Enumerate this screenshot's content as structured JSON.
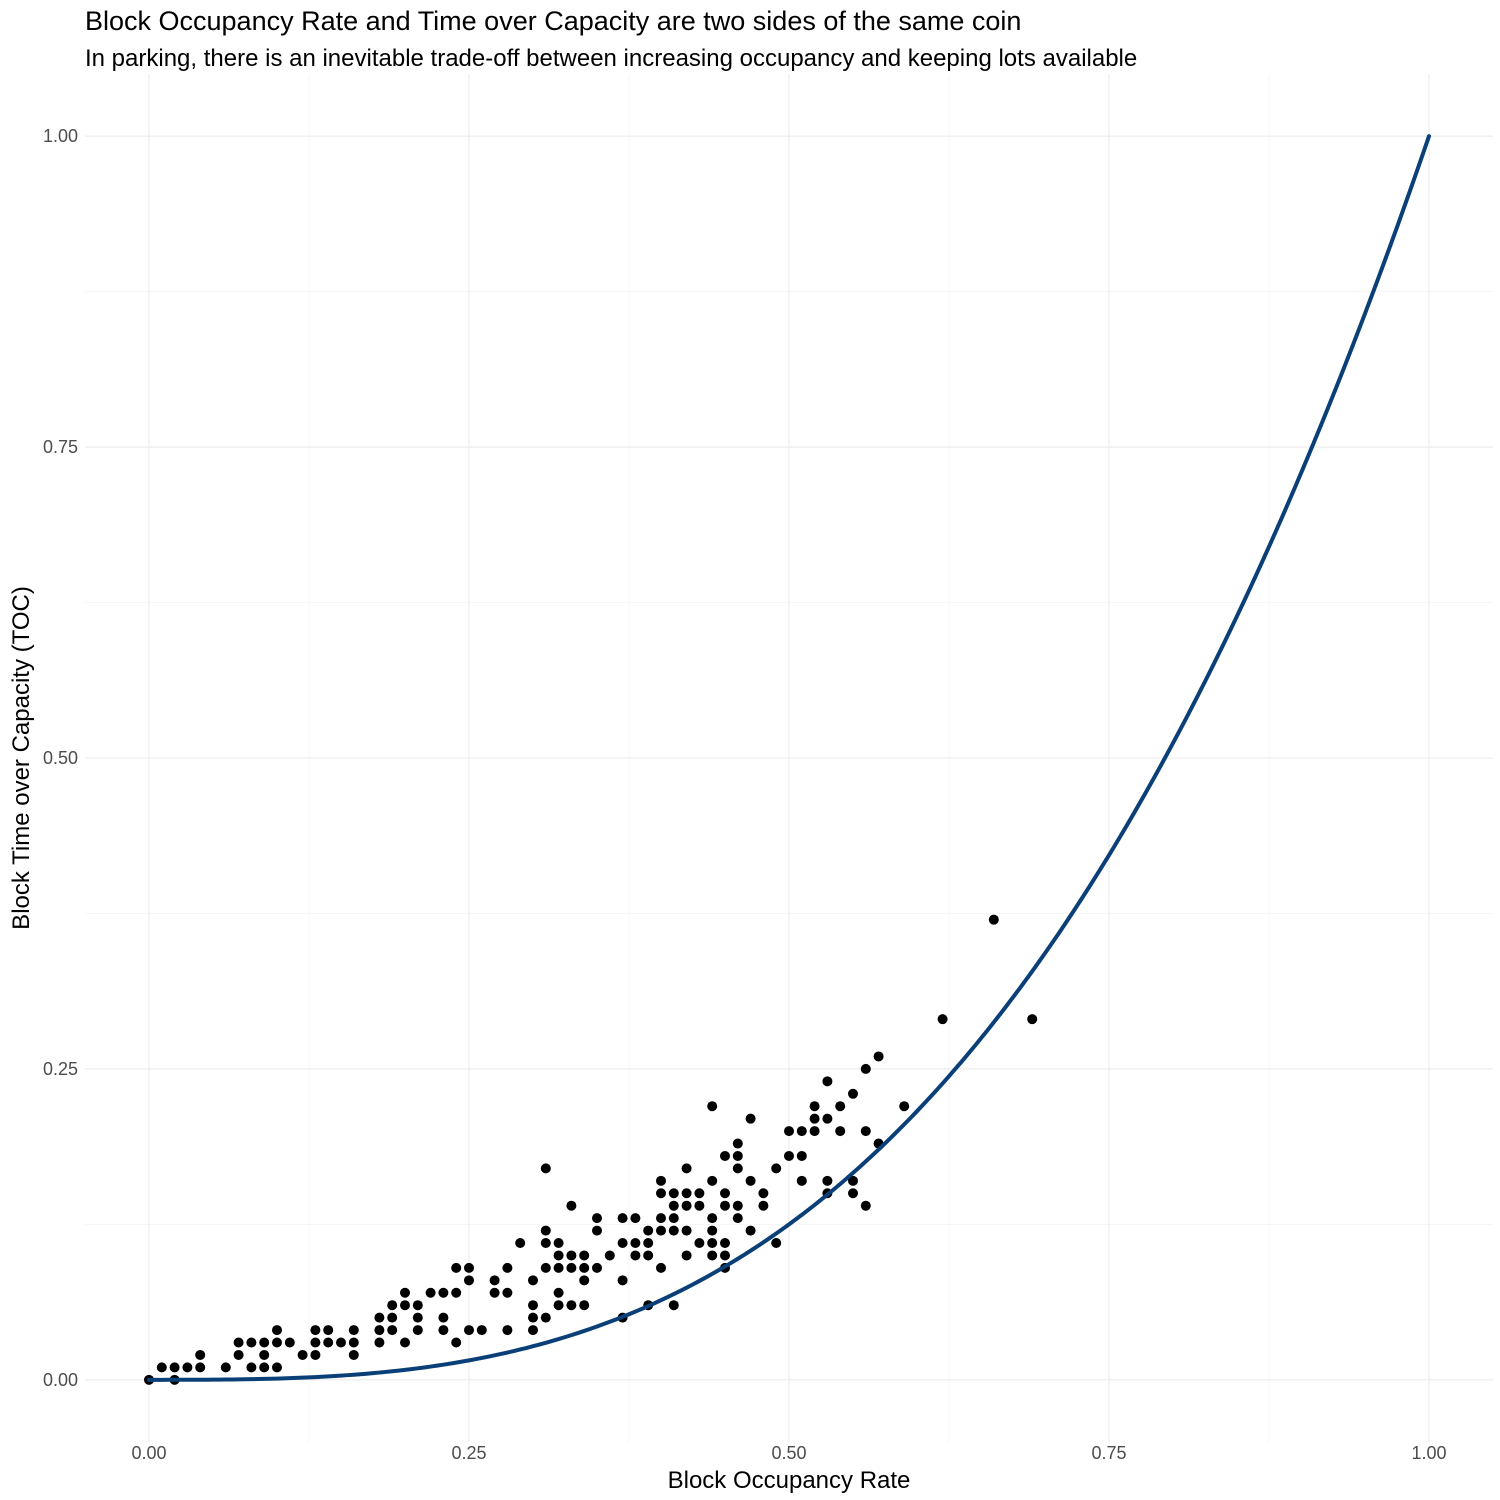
{
  "chart_data": {
    "type": "scatter",
    "title": "Block Occupancy Rate and Time over Capacity are two sides of the same coin",
    "subtitle": "In parking, there is an inevitable trade-off between increasing occupancy and keeping lots available",
    "xlabel": "Block Occupancy Rate",
    "ylabel": "Block Time over Capacity (TOC)",
    "xlim": [
      -0.05,
      1.05
    ],
    "ylim": [
      -0.05,
      1.05
    ],
    "x_ticks": [
      0,
      0.25,
      0.5,
      0.75,
      1
    ],
    "x_tick_labels": [
      "0.00",
      "0.25",
      "0.50",
      "0.75",
      "1.00"
    ],
    "y_ticks": [
      0,
      0.25,
      0.5,
      0.75,
      1
    ],
    "y_tick_labels": [
      "0.00",
      "0.25",
      "0.50",
      "0.75",
      "1.00"
    ],
    "grid": true,
    "legend": "none",
    "point_color": "#000000",
    "line_color": "#0b3f78",
    "fitted_curve": {
      "type": "line",
      "formula": "y = x^3",
      "x_range": [
        0,
        1
      ]
    },
    "points": [
      [
        0.0,
        0.0
      ],
      [
        0.01,
        0.01
      ],
      [
        0.02,
        0.01
      ],
      [
        0.02,
        0.0
      ],
      [
        0.03,
        0.01
      ],
      [
        0.04,
        0.01
      ],
      [
        0.04,
        0.02
      ],
      [
        0.06,
        0.01
      ],
      [
        0.07,
        0.02
      ],
      [
        0.07,
        0.03
      ],
      [
        0.08,
        0.03
      ],
      [
        0.08,
        0.01
      ],
      [
        0.09,
        0.03
      ],
      [
        0.09,
        0.02
      ],
      [
        0.09,
        0.01
      ],
      [
        0.1,
        0.04
      ],
      [
        0.1,
        0.03
      ],
      [
        0.1,
        0.01
      ],
      [
        0.11,
        0.03
      ],
      [
        0.12,
        0.02
      ],
      [
        0.13,
        0.04
      ],
      [
        0.13,
        0.03
      ],
      [
        0.13,
        0.02
      ],
      [
        0.14,
        0.04
      ],
      [
        0.14,
        0.03
      ],
      [
        0.15,
        0.03
      ],
      [
        0.16,
        0.04
      ],
      [
        0.16,
        0.03
      ],
      [
        0.16,
        0.02
      ],
      [
        0.18,
        0.05
      ],
      [
        0.18,
        0.04
      ],
      [
        0.18,
        0.03
      ],
      [
        0.19,
        0.06
      ],
      [
        0.19,
        0.05
      ],
      [
        0.19,
        0.04
      ],
      [
        0.2,
        0.07
      ],
      [
        0.2,
        0.06
      ],
      [
        0.2,
        0.03
      ],
      [
        0.21,
        0.06
      ],
      [
        0.21,
        0.05
      ],
      [
        0.21,
        0.04
      ],
      [
        0.22,
        0.07
      ],
      [
        0.23,
        0.07
      ],
      [
        0.23,
        0.05
      ],
      [
        0.23,
        0.04
      ],
      [
        0.24,
        0.09
      ],
      [
        0.24,
        0.07
      ],
      [
        0.24,
        0.03
      ],
      [
        0.25,
        0.09
      ],
      [
        0.25,
        0.08
      ],
      [
        0.25,
        0.04
      ],
      [
        0.26,
        0.04
      ],
      [
        0.27,
        0.08
      ],
      [
        0.27,
        0.07
      ],
      [
        0.28,
        0.09
      ],
      [
        0.28,
        0.07
      ],
      [
        0.28,
        0.04
      ],
      [
        0.29,
        0.11
      ],
      [
        0.3,
        0.08
      ],
      [
        0.3,
        0.06
      ],
      [
        0.3,
        0.05
      ],
      [
        0.3,
        0.04
      ],
      [
        0.31,
        0.17
      ],
      [
        0.31,
        0.12
      ],
      [
        0.31,
        0.11
      ],
      [
        0.31,
        0.09
      ],
      [
        0.31,
        0.05
      ],
      [
        0.32,
        0.11
      ],
      [
        0.32,
        0.1
      ],
      [
        0.32,
        0.09
      ],
      [
        0.32,
        0.07
      ],
      [
        0.32,
        0.06
      ],
      [
        0.33,
        0.14
      ],
      [
        0.33,
        0.1
      ],
      [
        0.33,
        0.09
      ],
      [
        0.33,
        0.06
      ],
      [
        0.34,
        0.1
      ],
      [
        0.34,
        0.09
      ],
      [
        0.34,
        0.08
      ],
      [
        0.34,
        0.06
      ],
      [
        0.35,
        0.13
      ],
      [
        0.35,
        0.12
      ],
      [
        0.35,
        0.09
      ],
      [
        0.36,
        0.1
      ],
      [
        0.37,
        0.13
      ],
      [
        0.37,
        0.11
      ],
      [
        0.37,
        0.08
      ],
      [
        0.37,
        0.05
      ],
      [
        0.38,
        0.13
      ],
      [
        0.38,
        0.11
      ],
      [
        0.38,
        0.1
      ],
      [
        0.39,
        0.12
      ],
      [
        0.39,
        0.11
      ],
      [
        0.39,
        0.1
      ],
      [
        0.39,
        0.06
      ],
      [
        0.4,
        0.16
      ],
      [
        0.4,
        0.15
      ],
      [
        0.4,
        0.13
      ],
      [
        0.4,
        0.12
      ],
      [
        0.4,
        0.09
      ],
      [
        0.41,
        0.15
      ],
      [
        0.41,
        0.14
      ],
      [
        0.41,
        0.13
      ],
      [
        0.41,
        0.12
      ],
      [
        0.41,
        0.06
      ],
      [
        0.42,
        0.17
      ],
      [
        0.42,
        0.15
      ],
      [
        0.42,
        0.14
      ],
      [
        0.42,
        0.12
      ],
      [
        0.42,
        0.1
      ],
      [
        0.43,
        0.15
      ],
      [
        0.43,
        0.14
      ],
      [
        0.43,
        0.11
      ],
      [
        0.44,
        0.22
      ],
      [
        0.44,
        0.16
      ],
      [
        0.44,
        0.13
      ],
      [
        0.44,
        0.12
      ],
      [
        0.44,
        0.11
      ],
      [
        0.44,
        0.1
      ],
      [
        0.45,
        0.18
      ],
      [
        0.45,
        0.15
      ],
      [
        0.45,
        0.14
      ],
      [
        0.45,
        0.11
      ],
      [
        0.45,
        0.1
      ],
      [
        0.45,
        0.09
      ],
      [
        0.46,
        0.19
      ],
      [
        0.46,
        0.18
      ],
      [
        0.46,
        0.17
      ],
      [
        0.46,
        0.14
      ],
      [
        0.46,
        0.13
      ],
      [
        0.47,
        0.21
      ],
      [
        0.47,
        0.16
      ],
      [
        0.47,
        0.12
      ],
      [
        0.48,
        0.15
      ],
      [
        0.48,
        0.14
      ],
      [
        0.49,
        0.17
      ],
      [
        0.49,
        0.11
      ],
      [
        0.5,
        0.2
      ],
      [
        0.5,
        0.18
      ],
      [
        0.51,
        0.2
      ],
      [
        0.51,
        0.18
      ],
      [
        0.51,
        0.16
      ],
      [
        0.52,
        0.22
      ],
      [
        0.52,
        0.21
      ],
      [
        0.52,
        0.2
      ],
      [
        0.53,
        0.24
      ],
      [
        0.53,
        0.21
      ],
      [
        0.53,
        0.16
      ],
      [
        0.53,
        0.15
      ],
      [
        0.54,
        0.22
      ],
      [
        0.54,
        0.2
      ],
      [
        0.55,
        0.23
      ],
      [
        0.55,
        0.16
      ],
      [
        0.55,
        0.15
      ],
      [
        0.56,
        0.25
      ],
      [
        0.56,
        0.2
      ],
      [
        0.56,
        0.14
      ],
      [
        0.57,
        0.26
      ],
      [
        0.57,
        0.19
      ],
      [
        0.59,
        0.22
      ],
      [
        0.62,
        0.29
      ],
      [
        0.66,
        0.37
      ],
      [
        0.69,
        0.29
      ]
    ]
  }
}
